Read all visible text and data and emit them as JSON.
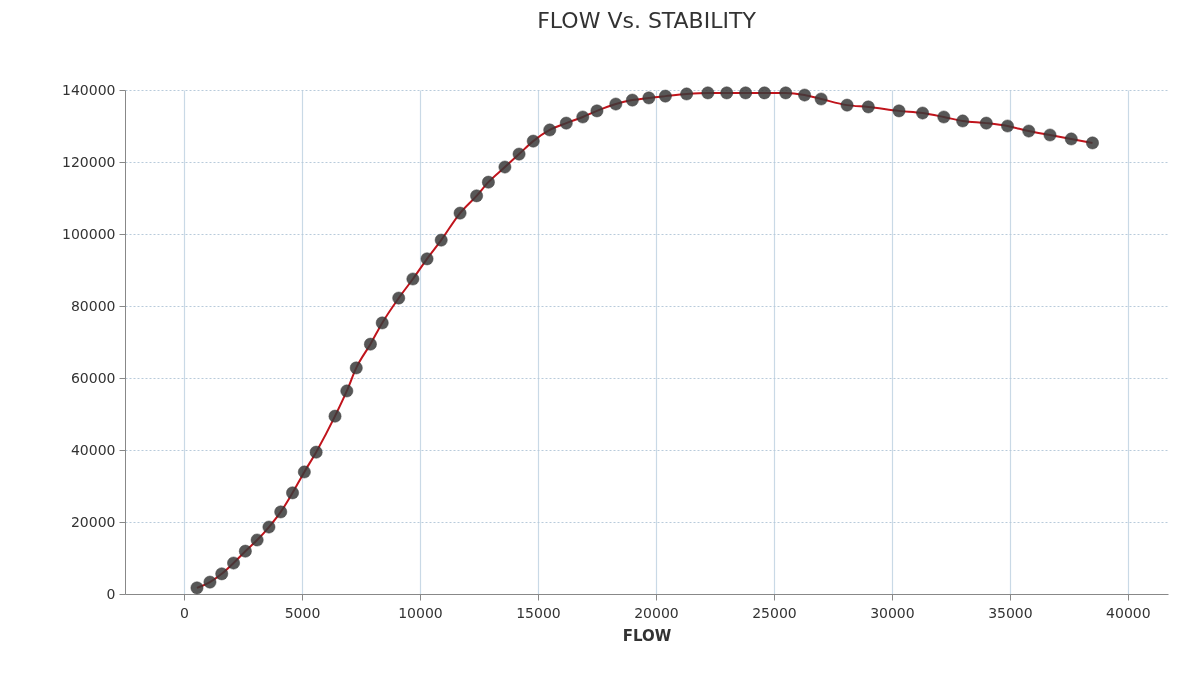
{
  "chart_data": {
    "type": "line",
    "title": "FLOW Vs. STABILITY",
    "xlabel": "FLOW",
    "x": [
      550,
      1100,
      1600,
      2100,
      2600,
      3100,
      3600,
      4100,
      4600,
      5100,
      5600,
      6400,
      6900,
      7300,
      7900,
      8400,
      9100,
      9700,
      10300,
      10900,
      11700,
      12400,
      12900,
      13600,
      14200,
      14800,
      15500,
      16200,
      16900,
      17500,
      18300,
      19000,
      19700,
      20400,
      21300,
      22200,
      23000,
      23800,
      24600,
      25500,
      26300,
      27000,
      28100,
      29000,
      30300,
      31300,
      32200,
      33000,
      34000,
      34900,
      35800,
      36700,
      37600,
      38500
    ],
    "series": [
      {
        "color": "#c0141c",
        "values": [
          1700,
          3300,
          5600,
          8600,
          11900,
          15000,
          18600,
          22800,
          28100,
          33900,
          39400,
          49400,
          56400,
          62800,
          69400,
          75300,
          82200,
          87500,
          93100,
          98300,
          105800,
          110600,
          114400,
          118600,
          122200,
          125800,
          128900,
          130800,
          132500,
          134200,
          136100,
          137200,
          137800,
          138300,
          138900,
          139200,
          139200,
          139200,
          139200,
          139200,
          138600,
          137500,
          135800,
          135300,
          134200,
          133600,
          132500,
          131400,
          130800,
          130000,
          128600,
          127500,
          126400,
          125300
        ]
      }
    ],
    "xlim": [
      -2500,
      41700
    ],
    "xticks": [
      0,
      5000,
      10000,
      15000,
      20000,
      25000,
      30000,
      35000,
      40000
    ],
    "ylim": [
      0,
      140000
    ],
    "yticks": [
      0,
      20000,
      40000,
      60000,
      80000,
      100000,
      120000,
      140000
    ],
    "grid": true,
    "marker": "circle",
    "line_style": "solid"
  }
}
